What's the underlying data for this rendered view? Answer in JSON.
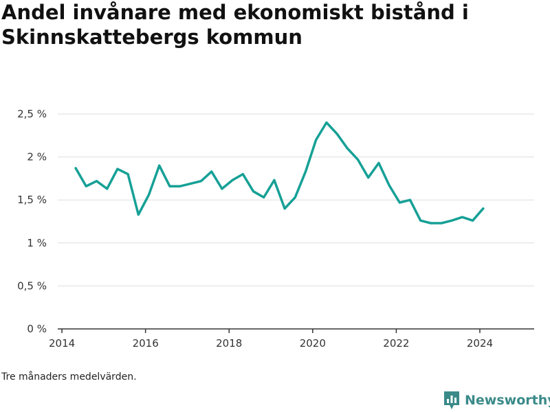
{
  "title": "Andel invånare med ekonomiskt bistånd i Skinnskattebergs kommun",
  "note": "Tre månaders medelvärden.",
  "brand": {
    "name": "Newsworthy",
    "icon": "newsworthy-logo-icon"
  },
  "colors": {
    "line": "#16a096",
    "grid": "#dddddd",
    "axis": "#333333",
    "brand": "#3a8a89"
  },
  "chart_data": {
    "type": "line",
    "title": "Andel invånare med ekonomiskt bistånd i Skinnskattebergs kommun",
    "xlabel": "",
    "ylabel": "",
    "xlim": [
      2013.9,
      2025.3
    ],
    "ylim": [
      0,
      2.5
    ],
    "x_ticks": [
      2014,
      2016,
      2018,
      2020,
      2022,
      2024
    ],
    "x_tick_labels": [
      "2014",
      "2016",
      "2018",
      "2020",
      "2022",
      "2024"
    ],
    "y_ticks": [
      0,
      0.5,
      1,
      1.5,
      2,
      2.5
    ],
    "y_tick_labels": [
      "0 %",
      "0,5 %",
      "1 %",
      "1,5 %",
      "2 %",
      "2,5 %"
    ],
    "grid": true,
    "series": [
      {
        "x": [
          2014.33,
          2014.58,
          2014.83,
          2015.08,
          2015.33,
          2015.58,
          2015.83,
          2016.08,
          2016.33,
          2016.58,
          2016.83,
          2017.08,
          2017.33,
          2017.58,
          2017.83,
          2018.08,
          2018.33,
          2018.58,
          2018.83,
          2019.08,
          2019.33,
          2019.58,
          2019.83,
          2020.08,
          2020.33,
          2020.58,
          2020.83,
          2021.08,
          2021.33,
          2021.58,
          2021.83,
          2022.08,
          2022.33,
          2022.58,
          2022.83,
          2023.08,
          2023.33,
          2023.58,
          2023.83,
          2024.08
        ],
        "values": [
          1.87,
          1.66,
          1.72,
          1.63,
          1.86,
          1.8,
          1.33,
          1.56,
          1.9,
          1.66,
          1.66,
          1.69,
          1.72,
          1.83,
          1.63,
          1.73,
          1.8,
          1.6,
          1.53,
          1.73,
          1.4,
          1.53,
          1.83,
          2.2,
          2.4,
          2.27,
          2.1,
          1.97,
          1.76,
          1.93,
          1.67,
          1.47,
          1.5,
          1.26,
          1.23,
          1.23,
          1.26,
          1.3,
          1.26,
          1.4
        ]
      }
    ]
  }
}
